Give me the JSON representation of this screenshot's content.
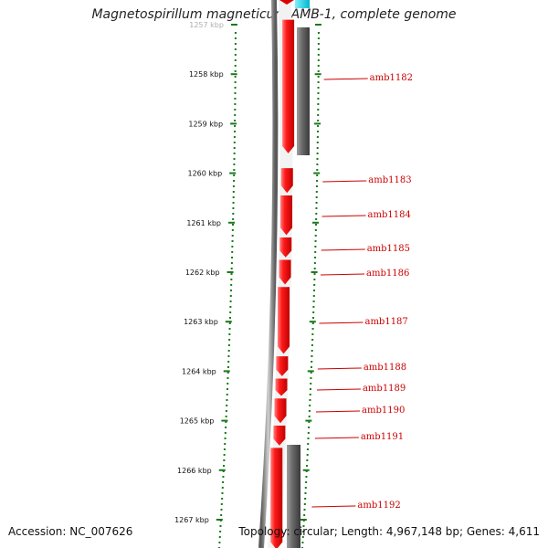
{
  "title": "Magnetospirillum magneticum AMB-1, complete genome",
  "footer": {
    "accession": "Accession: NC_007626",
    "stats": "Topology: circular; Length: 4,967,148 bp; Genes: 4,611"
  },
  "ticks": [
    {
      "label": "1257 kbp",
      "kbp": 1257
    },
    {
      "label": "1258 kbp",
      "kbp": 1258
    },
    {
      "label": "1259 kbp",
      "kbp": 1259
    },
    {
      "label": "1260 kbp",
      "kbp": 1260
    },
    {
      "label": "1261 kbp",
      "kbp": 1261
    },
    {
      "label": "1262 kbp",
      "kbp": 1262
    },
    {
      "label": "1263 kbp",
      "kbp": 1263
    },
    {
      "label": "1264 kbp",
      "kbp": 1264
    },
    {
      "label": "1265 kbp",
      "kbp": 1265
    },
    {
      "label": "1266 kbp",
      "kbp": 1266
    },
    {
      "label": "1267 kbp",
      "kbp": 1267
    }
  ],
  "genes": [
    {
      "name": "amb1182",
      "start_kbp": 1256.9,
      "end_kbp": 1259.6
    },
    {
      "name": "amb1183",
      "start_kbp": 1259.9,
      "end_kbp": 1260.4
    },
    {
      "name": "amb1184",
      "start_kbp": 1260.45,
      "end_kbp": 1261.25
    },
    {
      "name": "amb1185",
      "start_kbp": 1261.3,
      "end_kbp": 1261.7
    },
    {
      "name": "amb1186",
      "start_kbp": 1261.75,
      "end_kbp": 1262.25
    },
    {
      "name": "amb1187",
      "start_kbp": 1262.3,
      "end_kbp": 1263.65
    },
    {
      "name": "amb1188",
      "start_kbp": 1263.7,
      "end_kbp": 1264.1
    },
    {
      "name": "amb1189",
      "start_kbp": 1264.15,
      "end_kbp": 1264.5
    },
    {
      "name": "amb1190",
      "start_kbp": 1264.55,
      "end_kbp": 1265.05
    },
    {
      "name": "amb1191",
      "start_kbp": 1265.1,
      "end_kbp": 1265.5
    },
    {
      "name": "amb1192",
      "start_kbp": 1265.55,
      "end_kbp": 1267.6
    }
  ],
  "colors": {
    "gene": "#ee0000",
    "gene_highlight": "#ff8080",
    "gray_feature": "#606060",
    "backbone": "#808080",
    "tick": "#1a7a1a",
    "cyan_feature": "#00d8e8",
    "label": "#cc0000"
  }
}
